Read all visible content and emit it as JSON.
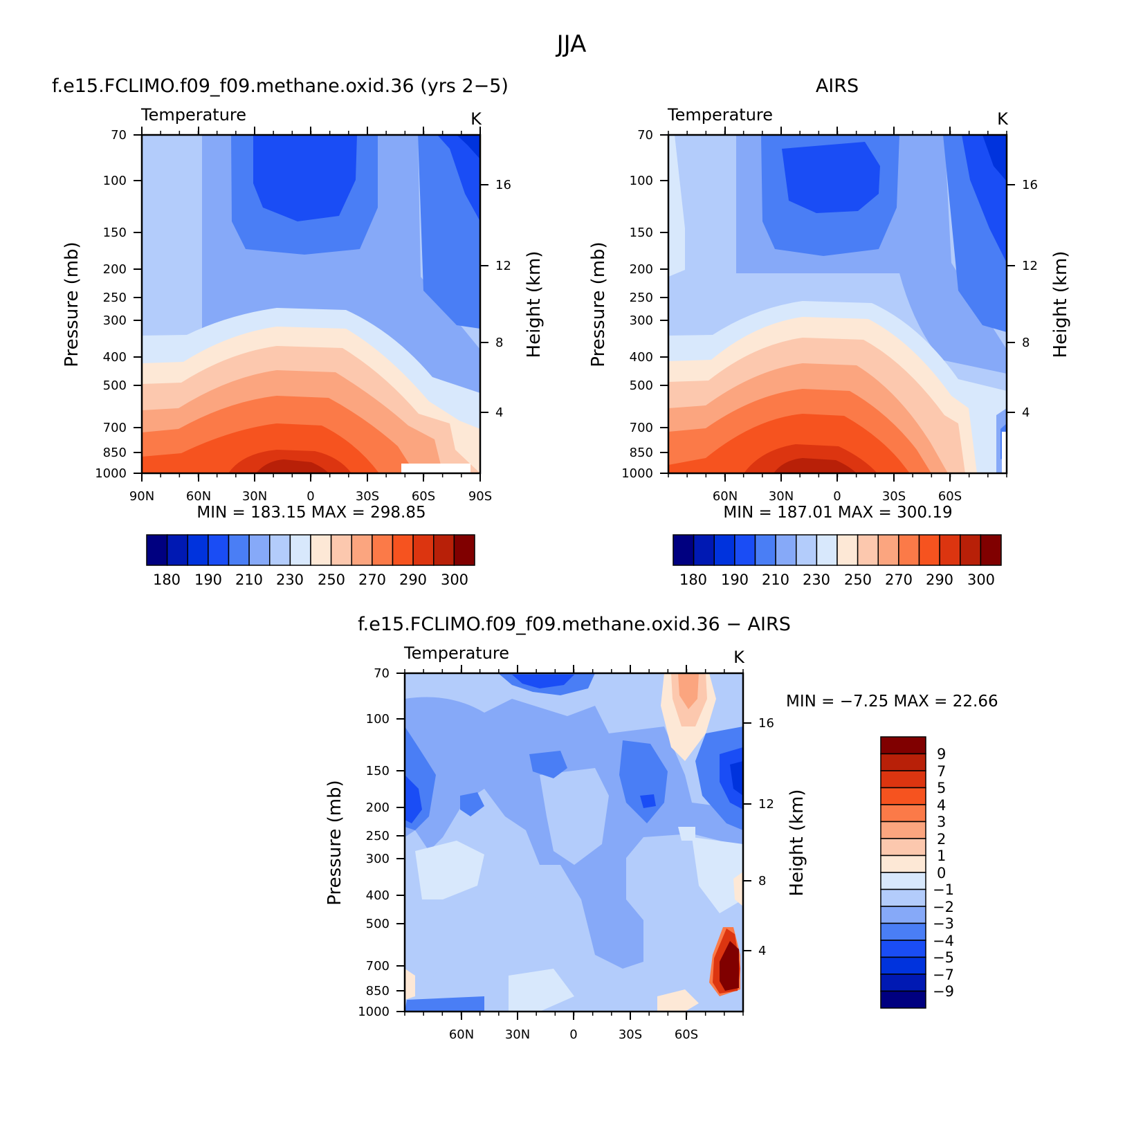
{
  "figure_title": "JJA",
  "colors": {
    "temp_scale": [
      "#000080",
      "#0019b3",
      "#0033dd",
      "#1a4df5",
      "#4a7ef5",
      "#86a9f8",
      "#b3ccfb",
      "#d8e8fc",
      "#fde8d6",
      "#fcc8ae",
      "#fba57f",
      "#fb7a48",
      "#f6531f",
      "#dc3510",
      "#b82008",
      "#800000"
    ],
    "diff_scale": [
      "#000080",
      "#0019b3",
      "#0033dd",
      "#1a4df5",
      "#4a7ef5",
      "#86a9f8",
      "#b3ccfb",
      "#d8e8fc",
      "#fde8d6",
      "#fcc8ae",
      "#fba57f",
      "#fb7a48",
      "#f6531f",
      "#dc3510",
      "#b82008",
      "#800000"
    ]
  },
  "chart_data": [
    {
      "id": "model",
      "type": "heatmap",
      "title": "f.e15.FCLIMO.f09_f09.methane.oxid.36 (yrs 2−5)",
      "subtitle_left": "Temperature",
      "subtitle_right": "K",
      "ylabel": "Pressure (mb)",
      "ylabel2": "Height (km)",
      "x_ticks": [
        "90N",
        "60N",
        "30N",
        "0",
        "30S",
        "60S",
        "90S"
      ],
      "x_values": [
        90,
        60,
        30,
        0,
        -30,
        -60,
        -90
      ],
      "xlim": [
        90,
        -90
      ],
      "y_ticks": [
        "70",
        "100",
        "150",
        "200",
        "250",
        "300",
        "400",
        "500",
        "700",
        "850",
        "1000"
      ],
      "y_values": [
        70,
        100,
        150,
        200,
        250,
        300,
        400,
        500,
        700,
        850,
        1000
      ],
      "ylim": [
        70,
        1000
      ],
      "height_ticks": [
        "16",
        "12",
        "8",
        "4"
      ],
      "height_values": [
        16,
        12,
        8,
        4
      ],
      "min_label": "MIN =",
      "min_value": "183.15",
      "max_label": "MAX =",
      "max_value": "298.85",
      "levels": [
        175,
        180,
        185,
        190,
        200,
        210,
        220,
        230,
        240,
        250,
        260,
        270,
        280,
        290,
        295,
        300
      ],
      "colorbar_labels": [
        "180",
        "190",
        "210",
        "230",
        "250",
        "270",
        "290",
        "300"
      ]
    },
    {
      "id": "airs",
      "type": "heatmap",
      "title": "AIRS",
      "subtitle_left": "Temperature",
      "subtitle_right": "K",
      "ylabel": "Pressure (mb)",
      "ylabel2": "Height (km)",
      "x_ticks": [
        "60N",
        "30N",
        "0",
        "30S",
        "60S"
      ],
      "x_values": [
        60,
        30,
        0,
        -30,
        -60
      ],
      "xlim": [
        90,
        -90
      ],
      "y_ticks": [
        "70",
        "100",
        "150",
        "200",
        "250",
        "300",
        "400",
        "500",
        "700",
        "850",
        "1000"
      ],
      "y_values": [
        70,
        100,
        150,
        200,
        250,
        300,
        400,
        500,
        700,
        850,
        1000
      ],
      "ylim": [
        70,
        1000
      ],
      "height_ticks": [
        "16",
        "12",
        "8",
        "4"
      ],
      "height_values": [
        16,
        12,
        8,
        4
      ],
      "min_label": "MIN =",
      "min_value": "187.01",
      "max_label": "MAX =",
      "max_value": "300.19",
      "levels": [
        175,
        180,
        185,
        190,
        200,
        210,
        220,
        230,
        240,
        250,
        260,
        270,
        280,
        290,
        295,
        300
      ],
      "colorbar_labels": [
        "180",
        "190",
        "210",
        "230",
        "250",
        "270",
        "290",
        "300"
      ]
    },
    {
      "id": "diff",
      "type": "heatmap",
      "title": "f.e15.FCLIMO.f09_f09.methane.oxid.36 − AIRS",
      "subtitle_left": "Temperature",
      "subtitle_right": "K",
      "ylabel": "Pressure (mb)",
      "ylabel2": "Height (km)",
      "x_ticks": [
        "60N",
        "30N",
        "0",
        "30S",
        "60S"
      ],
      "x_values": [
        60,
        30,
        0,
        -30,
        -60
      ],
      "xlim": [
        90,
        -90
      ],
      "y_ticks": [
        "70",
        "100",
        "150",
        "200",
        "250",
        "300",
        "400",
        "500",
        "700",
        "850",
        "1000"
      ],
      "y_values": [
        70,
        100,
        150,
        200,
        250,
        300,
        400,
        500,
        700,
        850,
        1000
      ],
      "ylim": [
        70,
        1000
      ],
      "height_ticks": [
        "16",
        "12",
        "8",
        "4"
      ],
      "height_values": [
        16,
        12,
        8,
        4
      ],
      "min_label": "MIN =",
      "min_value": "−7.25",
      "max_label": "MAX =",
      "max_value": "22.66",
      "levels": [
        -11,
        -9,
        -7,
        -5,
        -4,
        -3,
        -2,
        -1,
        0,
        1,
        2,
        3,
        4,
        5,
        7,
        9
      ],
      "colorbar_labels": [
        "9",
        "7",
        "5",
        "4",
        "3",
        "2",
        "1",
        "0",
        "−1",
        "−2",
        "−3",
        "−4",
        "−5",
        "−7",
        "−9"
      ]
    }
  ]
}
